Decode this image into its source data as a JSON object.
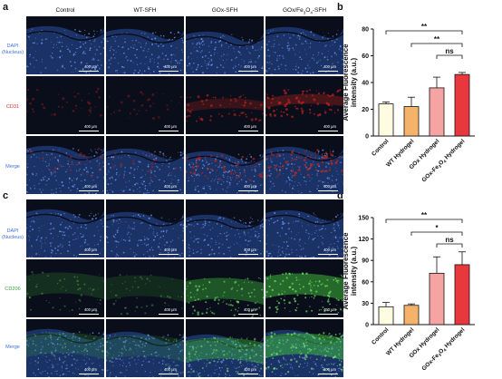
{
  "panels": {
    "a": "a",
    "b": "b",
    "c": "c",
    "d": "d"
  },
  "columns": [
    "Control",
    "WT-SFH",
    "GOx-SFH",
    "GOx/Fe3O4-SFH"
  ],
  "columns_sub": {
    "base": "GOx/Fe",
    "sub": "3",
    "mid": "O",
    "sub2": "4",
    "tail": "-SFH"
  },
  "row_labels_a": [
    {
      "line1": "DAPI",
      "line2": "(Nucleus)",
      "color": "#3f6fd6"
    },
    {
      "line1": "CD31",
      "line2": "",
      "color": "#d8322d"
    },
    {
      "line1": "Merge",
      "line2": "",
      "color": "#3f6fd6"
    }
  ],
  "row_labels_c": [
    {
      "line1": "DAPI",
      "line2": "(Nucleus)",
      "color": "#3f6fd6"
    },
    {
      "line1": "CD206",
      "line2": "",
      "color": "#3aa13a"
    },
    {
      "line1": "Merge",
      "line2": "",
      "color": "#3f6fd6"
    }
  ],
  "scale_label": "400 μm",
  "colors": {
    "tile_bg": "#0a0d1a",
    "dapi": "#2e5fc4",
    "cd31": "#c2261c",
    "cd206": "#3fbf3a",
    "bar_control": "#fdfbe0",
    "bar_wt": "#f4b26a",
    "bar_gox": "#f5a3a3",
    "bar_goxfe": "#e8383d"
  },
  "chart_data": [
    {
      "type": "bar",
      "ylabel": "Average Fluorescence intensity (a.u.)",
      "categories": [
        "Control",
        "WT Hydrogel",
        "GOx Hydrogel",
        "GOx-Fe3O4 Hydrogel"
      ],
      "values": [
        24,
        22,
        36,
        46
      ],
      "errors": [
        1.5,
        7,
        8,
        1.5
      ],
      "ylim": [
        0,
        80
      ],
      "yticks": [
        0,
        20,
        40,
        60,
        80
      ],
      "significance": [
        {
          "from": 0,
          "to": 3,
          "label": "**"
        },
        {
          "from": 1,
          "to": 3,
          "label": "**"
        },
        {
          "from": 2,
          "to": 3,
          "label": "ns"
        }
      ]
    },
    {
      "type": "bar",
      "ylabel": "Average Fluorescence intensity (a.u.)",
      "categories": [
        "Control",
        "WT Hydrogel",
        "GOx Hydrogel",
        "GOx-Fe3O4 Hydrogel"
      ],
      "values": [
        25,
        27,
        72,
        84
      ],
      "errors": [
        6,
        2,
        23,
        18
      ],
      "ylim": [
        0,
        150
      ],
      "yticks": [
        0,
        30,
        60,
        90,
        120,
        150
      ],
      "significance": [
        {
          "from": 0,
          "to": 3,
          "label": "**"
        },
        {
          "from": 1,
          "to": 3,
          "label": "*"
        },
        {
          "from": 2,
          "to": 3,
          "label": "ns"
        }
      ]
    }
  ]
}
